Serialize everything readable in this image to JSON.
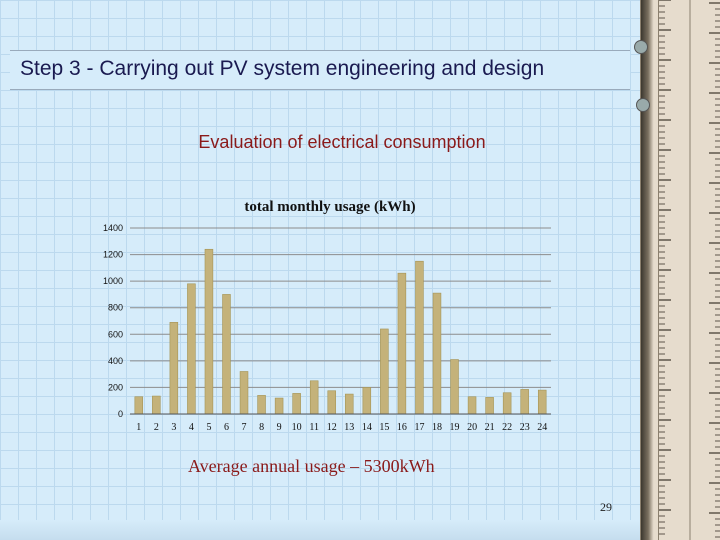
{
  "slide": {
    "title": "Step 3 - Carrying out PV system engineering and design",
    "subtitle": "Evaluation of electrical consumption",
    "caption": "Average annual usage – 5300kWh",
    "page_number": "29"
  },
  "chart_data": {
    "type": "bar",
    "title": "total monthly usage (kWh)",
    "xlabel": "",
    "ylabel": "",
    "categories": [
      "1",
      "2",
      "3",
      "4",
      "5",
      "6",
      "7",
      "8",
      "9",
      "10",
      "11",
      "12",
      "13",
      "14",
      "15",
      "16",
      "17",
      "18",
      "19",
      "20",
      "21",
      "22",
      "23",
      "24"
    ],
    "values": [
      130,
      135,
      690,
      980,
      1240,
      900,
      320,
      140,
      120,
      155,
      250,
      175,
      150,
      200,
      640,
      1060,
      1150,
      910,
      410,
      130,
      125,
      160,
      185,
      180
    ],
    "ylim": [
      0,
      1400
    ],
    "yticks": [
      0,
      200,
      400,
      600,
      800,
      1000,
      1200,
      1400
    ],
    "grid": true,
    "legend": "none",
    "bar_color": "#c4b27a",
    "bar_edge_color": "#a59455"
  }
}
